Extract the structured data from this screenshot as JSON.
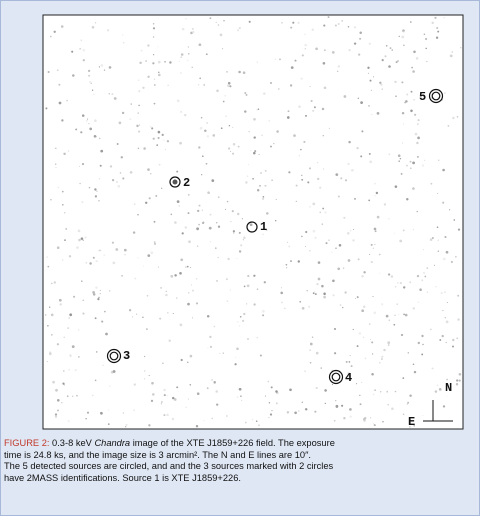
{
  "figure": {
    "sources": [
      {
        "label": "1"
      },
      {
        "label": "2"
      },
      {
        "label": "3"
      },
      {
        "label": "4"
      },
      {
        "label": "5"
      }
    ],
    "compass": {
      "north": "N",
      "east": "E"
    },
    "caption": {
      "label": "FIGURE 2:",
      "line1_pre": " 0.3-8 keV ",
      "line1_italic": "Chandra",
      "line1_post": " image of the XTE J1859+226 field. The exposure",
      "line2": "time is 24.8 ks, and the image size is 3 arcmin². The N and E lines are 10″.",
      "line3": "The 5 detected sources are circled, and and the 3 sources marked with 2 circles",
      "line4": "have 2MASS identifications. Source 1 is XTE J1859+226."
    }
  }
}
